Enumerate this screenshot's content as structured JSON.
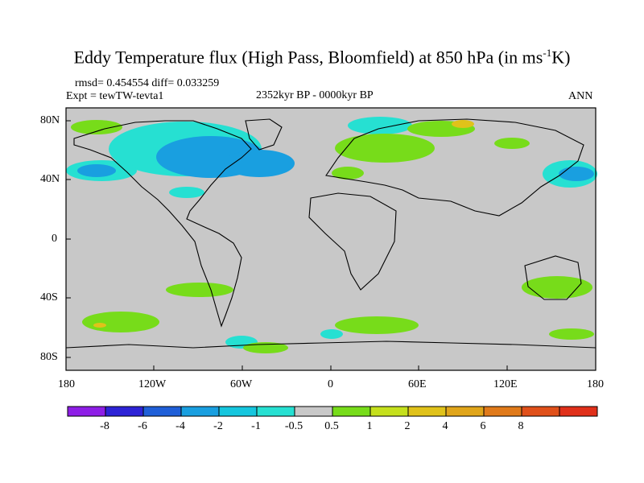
{
  "title": {
    "main": "Eddy Temperature flux (High Pass, Bloomfield) at 850 hPa (in ms",
    "sup": "-1",
    "tail": "K)"
  },
  "stats": "rmsd= 0.454554  diff= 0.033259",
  "experiment": "Expt = tewTW-tevta1",
  "period": "2352kyr BP - 0000kyr BP",
  "season": "ANN",
  "axes": {
    "lat_ticks": [
      "80N",
      "40N",
      "0",
      "40S",
      "80S"
    ],
    "lon_ticks": [
      "180",
      "120W",
      "60W",
      "0",
      "60E",
      "120E",
      "180"
    ]
  },
  "colorbar": {
    "colors": [
      "#8e1ee6",
      "#2d23d6",
      "#1f5fd8",
      "#199fe0",
      "#15c6de",
      "#26e0d2",
      "#c8c8c8",
      "#77dc1a",
      "#c5e01c",
      "#e0c21a",
      "#e0a51a",
      "#e07a1a",
      "#e0501a",
      "#e0301a"
    ],
    "labels": [
      "-8",
      "-6",
      "-4",
      "-2",
      "-1",
      "-0.5",
      "0.5",
      "1",
      "2",
      "4",
      "6",
      "8"
    ]
  }
}
